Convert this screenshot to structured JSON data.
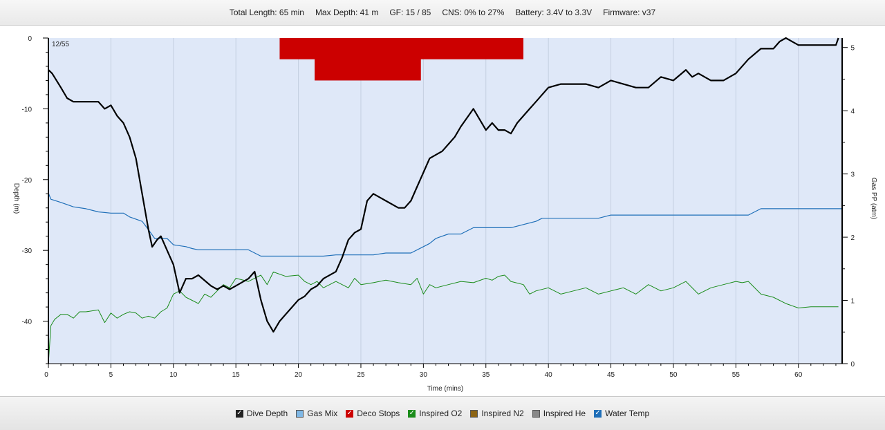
{
  "header": {
    "total_length": "Total Length: 65 min",
    "max_depth": "Max Depth: 41 m",
    "gf": "GF: 15 / 85",
    "cns": "CNS: 0% to 27%",
    "battery": "Battery: 3.4V to 3.3V",
    "firmware": "Firmware: v37"
  },
  "legend": {
    "items": [
      {
        "label": "Dive Depth",
        "checked": true,
        "color": "#222222"
      },
      {
        "label": "Gas Mix",
        "checked": false,
        "color": "#7fb8e6"
      },
      {
        "label": "Deco Stops",
        "checked": true,
        "color": "#cc0000"
      },
      {
        "label": "Inspired O2",
        "checked": true,
        "color": "#1a8c1a"
      },
      {
        "label": "Inspired N2",
        "checked": false,
        "color": "#8c6414"
      },
      {
        "label": "Inspired He",
        "checked": false,
        "color": "#888888"
      },
      {
        "label": "Water Temp",
        "checked": true,
        "color": "#1f6fb8"
      }
    ]
  },
  "chart_data": {
    "type": "line",
    "corner_label": "12/55",
    "xlabel": "Time (mins)",
    "ylabel_left": "Depth (m)",
    "ylabel_right": "Gas PP (atm)",
    "xlim": [
      0,
      63.5
    ],
    "ylim_left": [
      0,
      46
    ],
    "ylim_right": [
      0,
      5.15
    ],
    "x_ticks": [
      0,
      5,
      10,
      15,
      20,
      25,
      30,
      35,
      40,
      45,
      50,
      55,
      60
    ],
    "y_ticks_left": [
      0,
      -10,
      -20,
      -30,
      -40
    ],
    "y_ticks_right": [
      0,
      1,
      2,
      3,
      4,
      5
    ],
    "grid": "vertical",
    "colors": {
      "depth": "#000000",
      "deco": "#cc0000",
      "o2": "#1a8c1a",
      "temp": "#1f6fb8",
      "plot_bg": "#dfe8f8"
    },
    "deco_stops": [
      {
        "start": 18.5,
        "end": 38,
        "depth": 3
      },
      {
        "start": 21.3,
        "end": 29.8,
        "depth": 6
      }
    ],
    "series": [
      {
        "name": "Dive Depth",
        "axis": "left",
        "x": [
          0,
          0.3,
          1,
          1.5,
          2,
          2.5,
          3,
          4,
          4.5,
          5,
          5.5,
          6,
          6.5,
          7,
          7.5,
          8,
          8.3,
          8.7,
          9,
          9.5,
          10,
          10.5,
          11,
          11.5,
          12,
          13,
          13.5,
          14,
          14.5,
          15,
          16,
          16.5,
          17,
          17.5,
          18,
          18.5,
          19,
          19.5,
          20,
          20.5,
          21,
          21.5,
          22,
          23,
          23.5,
          24,
          24.5,
          25,
          25.5,
          26,
          26.5,
          27,
          28,
          28.5,
          29,
          29.5,
          30,
          30.5,
          31,
          31.5,
          32,
          32.5,
          33,
          34,
          35,
          35.5,
          36,
          36.5,
          37,
          37.5,
          38,
          38.5,
          39,
          40,
          41,
          42,
          43,
          44,
          45,
          46,
          47,
          48,
          49,
          50,
          51,
          51.5,
          52,
          52.5,
          53,
          54,
          55,
          56,
          57,
          58,
          58.5,
          59,
          60,
          61,
          62,
          63,
          63.2
        ],
        "y": [
          4.5,
          5,
          7,
          8.5,
          9,
          9,
          9,
          9,
          10,
          9.5,
          11,
          12,
          14,
          17,
          22,
          27,
          29.5,
          28.5,
          28,
          30,
          32,
          36,
          34,
          34,
          33.5,
          35,
          35.5,
          35,
          35.5,
          35,
          34,
          33,
          37,
          40,
          41.5,
          40,
          39,
          38,
          37,
          36.5,
          35.5,
          35,
          34,
          33,
          31,
          28.5,
          27.5,
          27,
          23,
          22,
          22.5,
          23,
          24,
          24,
          23,
          21,
          19,
          17,
          16.5,
          16,
          15,
          14,
          12.5,
          10,
          13,
          12,
          13,
          13,
          13.5,
          12,
          11,
          10,
          9,
          7,
          6.5,
          6.5,
          6.5,
          7,
          6,
          6.5,
          7,
          7,
          5.5,
          6,
          4.5,
          5.5,
          5,
          5.5,
          6,
          6,
          5,
          3,
          1.5,
          1.5,
          0.5,
          0,
          1,
          1,
          1,
          1,
          0
        ]
      },
      {
        "name": "Inspired O2",
        "axis": "right",
        "x": [
          0,
          0.2,
          0.5,
          1,
          1.5,
          2,
          2.5,
          3,
          4,
          4.5,
          5,
          5.5,
          6,
          6.5,
          7,
          7.5,
          8,
          8.5,
          9,
          9.5,
          10,
          10.5,
          11,
          11.5,
          12,
          12.5,
          13,
          13.5,
          14,
          14.5,
          15,
          16,
          17,
          17.5,
          18,
          19,
          20,
          20.5,
          21,
          21.5,
          22,
          22.5,
          23,
          24,
          24.5,
          25,
          26,
          27,
          28,
          29,
          29.5,
          30,
          30.5,
          31,
          32,
          33,
          34,
          35,
          35.5,
          36,
          36.5,
          37,
          38,
          38.5,
          39,
          40,
          41,
          42,
          43,
          44,
          45,
          46,
          47,
          48,
          49,
          50,
          51,
          52,
          53,
          54,
          55,
          55.5,
          56,
          57,
          58,
          59,
          60,
          61,
          62,
          63,
          63.2
        ],
        "y": [
          0,
          0.6,
          0.7,
          0.78,
          0.78,
          0.72,
          0.82,
          0.82,
          0.85,
          0.65,
          0.8,
          0.72,
          0.78,
          0.82,
          0.8,
          0.72,
          0.75,
          0.72,
          0.82,
          0.88,
          1.1,
          1.15,
          1.05,
          1.0,
          0.95,
          1.1,
          1.05,
          1.15,
          1.25,
          1.2,
          1.35,
          1.3,
          1.4,
          1.25,
          1.45,
          1.38,
          1.4,
          1.3,
          1.25,
          1.3,
          1.2,
          1.25,
          1.3,
          1.2,
          1.35,
          1.25,
          1.28,
          1.32,
          1.28,
          1.25,
          1.35,
          1.1,
          1.25,
          1.2,
          1.25,
          1.3,
          1.28,
          1.35,
          1.32,
          1.38,
          1.4,
          1.3,
          1.25,
          1.1,
          1.15,
          1.2,
          1.1,
          1.15,
          1.2,
          1.1,
          1.15,
          1.2,
          1.1,
          1.25,
          1.15,
          1.2,
          1.3,
          1.1,
          1.2,
          1.25,
          1.3,
          1.28,
          1.3,
          1.1,
          1.05,
          0.95,
          0.88,
          0.9,
          0.9,
          0.9,
          0.9
        ]
      },
      {
        "name": "Water Temp",
        "axis": "right",
        "x": [
          0,
          0.2,
          1,
          2,
          3,
          4,
          5,
          6,
          6.5,
          7.5,
          8,
          8.5,
          9.5,
          10,
          11,
          11.5,
          12,
          13,
          14,
          15,
          16,
          17,
          18,
          19,
          20,
          21,
          22,
          23,
          24,
          25,
          26,
          27,
          28,
          29,
          30,
          30.5,
          31,
          32,
          33,
          34,
          35,
          36,
          37,
          38,
          39,
          39.5,
          40,
          41,
          42,
          43,
          44,
          45,
          46,
          47,
          48,
          49,
          50,
          51,
          52,
          53,
          54,
          55,
          56,
          57,
          57.5,
          58,
          59,
          60,
          61,
          62,
          63,
          63.5
        ],
        "y": [
          2.7,
          2.6,
          2.55,
          2.48,
          2.45,
          2.4,
          2.38,
          2.38,
          2.32,
          2.25,
          2.12,
          1.98,
          1.98,
          1.88,
          1.85,
          1.82,
          1.8,
          1.8,
          1.8,
          1.8,
          1.8,
          1.7,
          1.7,
          1.7,
          1.7,
          1.7,
          1.7,
          1.72,
          1.72,
          1.72,
          1.72,
          1.75,
          1.75,
          1.75,
          1.85,
          1.9,
          1.98,
          2.05,
          2.05,
          2.15,
          2.15,
          2.15,
          2.15,
          2.2,
          2.25,
          2.3,
          2.3,
          2.3,
          2.3,
          2.3,
          2.3,
          2.35,
          2.35,
          2.35,
          2.35,
          2.35,
          2.35,
          2.35,
          2.35,
          2.35,
          2.35,
          2.35,
          2.35,
          2.45,
          2.45,
          2.45,
          2.45,
          2.45,
          2.45,
          2.45,
          2.45,
          2.45
        ]
      }
    ]
  }
}
